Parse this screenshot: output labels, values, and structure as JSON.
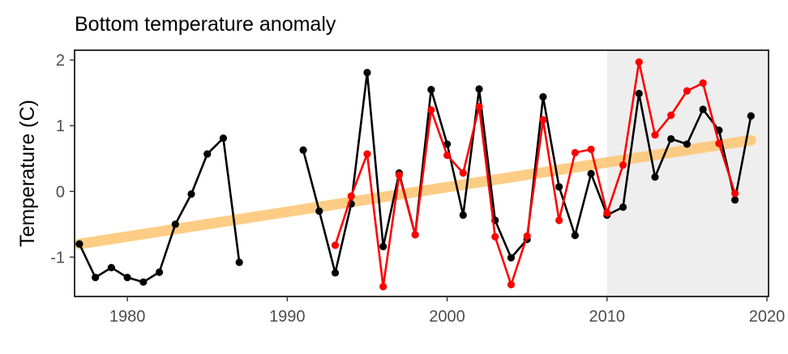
{
  "chart_data": {
    "type": "line",
    "title": "Bottom temperature anomaly",
    "xlabel": "",
    "ylabel": "Temperature (C)",
    "xlim": [
      1976.7,
      2020.1
    ],
    "ylim": [
      -1.6,
      2.15
    ],
    "x_ticks": [
      1980,
      1990,
      2000,
      2010,
      2020
    ],
    "y_ticks": [
      -1,
      0,
      1,
      2
    ],
    "y_tick_labels": [
      "-1",
      "0",
      "1",
      "2"
    ],
    "grid": false,
    "legend": "none",
    "highlight_region": {
      "x_start": 2010,
      "x_end": 2020.1,
      "color": "#eeeeee"
    },
    "trend_line": {
      "x": [
        1977,
        2019
      ],
      "y": [
        -0.8,
        0.78
      ],
      "color": "#fdc97c"
    },
    "series": [
      {
        "color": "#000000",
        "x": [
          1977,
          1978,
          1979,
          1980,
          1981,
          1982,
          1983,
          1984,
          1985,
          1986,
          1987,
          1988,
          1989,
          1990,
          1991,
          1992,
          1993,
          1994,
          1995,
          1996,
          1997,
          1998,
          1999,
          2000,
          2001,
          2002,
          2003,
          2004,
          2005,
          2006,
          2007,
          2008,
          2009,
          2010,
          2011,
          2012,
          2013,
          2014,
          2015,
          2016,
          2017,
          2018,
          2019
        ],
        "values": [
          -0.8,
          -1.31,
          -1.16,
          -1.31,
          -1.38,
          -1.23,
          -0.5,
          -0.04,
          0.57,
          0.81,
          -1.08,
          null,
          null,
          null,
          0.63,
          -0.3,
          -1.24,
          -0.19,
          1.81,
          -0.84,
          0.28,
          -0.66,
          1.55,
          0.72,
          -0.36,
          1.56,
          -0.44,
          -1.01,
          -0.73,
          1.44,
          0.07,
          -0.67,
          0.27,
          -0.36,
          -0.24,
          1.49,
          0.22,
          0.8,
          0.72,
          1.25,
          0.93,
          -0.13,
          1.15
        ]
      },
      {
        "color": "#ff0000",
        "x": [
          1993,
          1994,
          1995,
          1996,
          1997,
          1998,
          1999,
          2000,
          2001,
          2002,
          2003,
          2004,
          2005,
          2006,
          2007,
          2008,
          2009,
          2010,
          2011,
          2012,
          2013,
          2014,
          2015,
          2016,
          2017,
          2018
        ],
        "values": [
          -0.82,
          -0.07,
          0.57,
          -1.45,
          0.25,
          -0.66,
          1.24,
          0.55,
          0.28,
          1.29,
          -0.69,
          -1.42,
          -0.68,
          1.09,
          -0.44,
          0.59,
          0.64,
          -0.33,
          0.4,
          1.97,
          0.86,
          1.16,
          1.53,
          1.65,
          0.73,
          -0.03
        ]
      }
    ]
  }
}
